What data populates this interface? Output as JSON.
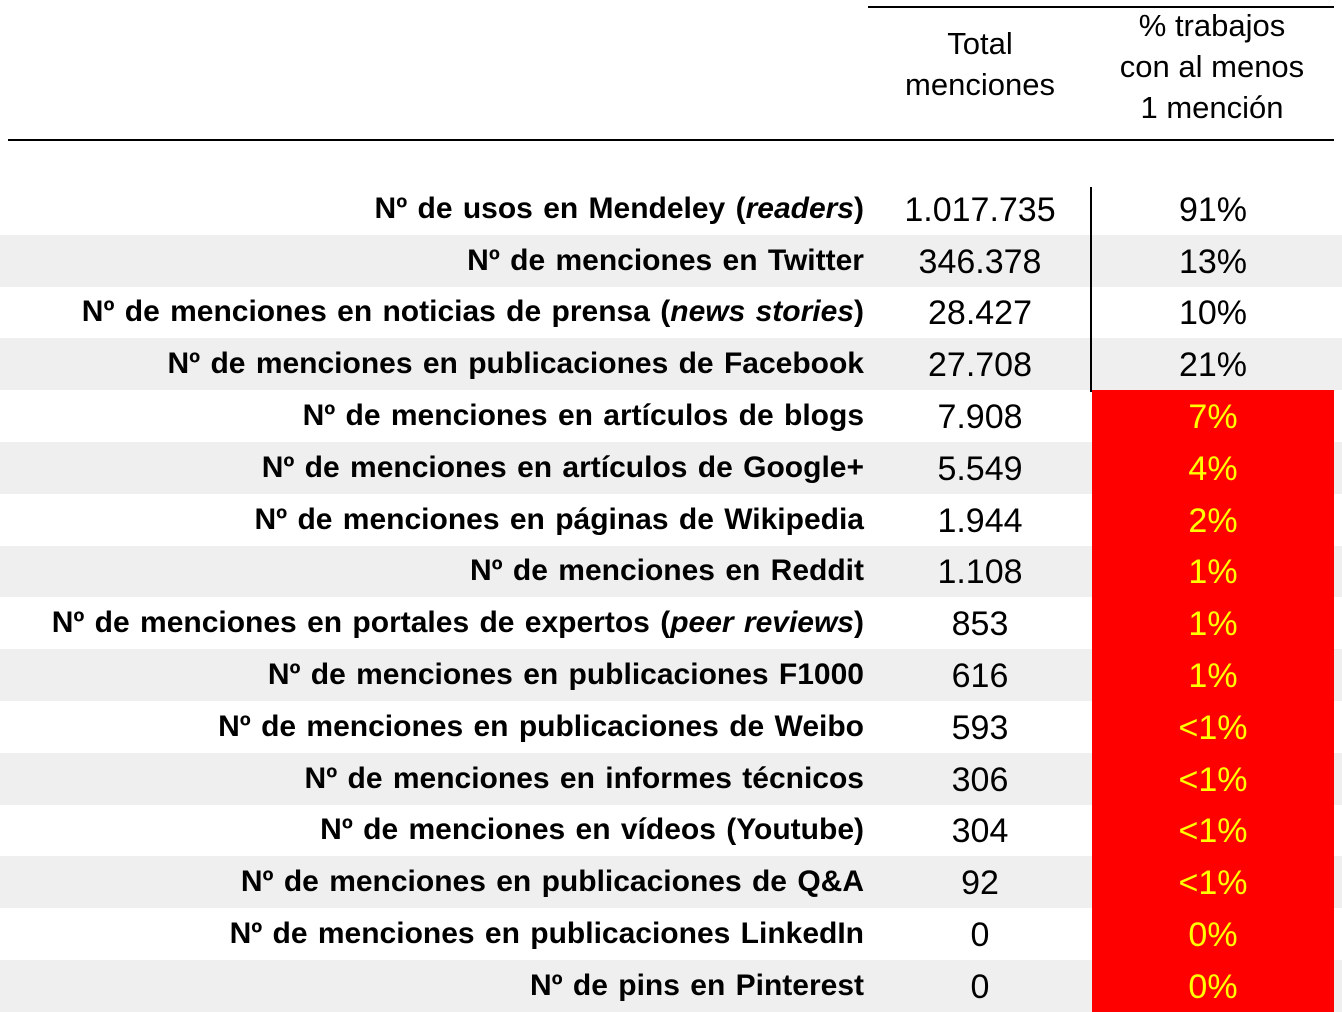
{
  "chart_data": {
    "type": "table",
    "columns": [
      "",
      "Total menciones",
      "% trabajos con al menos 1 mención"
    ],
    "column_headers": {
      "total": [
        "Total",
        "menciones"
      ],
      "pct": [
        "% trabajos",
        "con al menos",
        "1 mención"
      ]
    },
    "highlight_colors": {
      "fill": "#ff0000",
      "text": "#ffff00",
      "shade": "#efefef"
    },
    "rows": [
      {
        "label": "Nº de usos en Mendeley",
        "label_italic": "readers",
        "total": "1.017.735",
        "total_value": 1017735,
        "pct": "91%",
        "pct_value": 91
      },
      {
        "label": "Nº de menciones en Twitter",
        "label_italic": "",
        "total": "346.378",
        "total_value": 346378,
        "pct": "13%",
        "pct_value": 13
      },
      {
        "label": "Nº de menciones en noticias de prensa",
        "label_italic": "news stories",
        "total": "28.427",
        "total_value": 28427,
        "pct": "10%",
        "pct_value": 10
      },
      {
        "label": "Nº de menciones en publicaciones de Facebook",
        "label_italic": "",
        "total": "27.708",
        "total_value": 27708,
        "pct": "21%",
        "pct_value": 21
      },
      {
        "label": "Nº de menciones en artículos de blogs",
        "label_italic": "",
        "total": "7.908",
        "total_value": 7908,
        "pct": "7%",
        "pct_value": 7
      },
      {
        "label": "Nº de menciones en artículos de Google+",
        "label_italic": "",
        "total": "5.549",
        "total_value": 5549,
        "pct": "4%",
        "pct_value": 4
      },
      {
        "label": "Nº de menciones en páginas de Wikipedia",
        "label_italic": "",
        "total": "1.944",
        "total_value": 1944,
        "pct": "2%",
        "pct_value": 2
      },
      {
        "label": "Nº de menciones en Reddit",
        "label_italic": "",
        "total": "1.108",
        "total_value": 1108,
        "pct": "1%",
        "pct_value": 1
      },
      {
        "label": "Nº de menciones en portales de expertos",
        "label_italic": "peer reviews",
        "total": "853",
        "total_value": 853,
        "pct": "1%",
        "pct_value": 1
      },
      {
        "label": "Nº de menciones en publicaciones F1000",
        "label_italic": "",
        "total": "616",
        "total_value": 616,
        "pct": "1%",
        "pct_value": 1
      },
      {
        "label": "Nº de menciones en publicaciones de Weibo",
        "label_italic": "",
        "total": "593",
        "total_value": 593,
        "pct": "<1%",
        "pct_value": null
      },
      {
        "label": "Nº de menciones en informes técnicos",
        "label_italic": "",
        "total": "306",
        "total_value": 306,
        "pct": "<1%",
        "pct_value": null
      },
      {
        "label": "Nº de menciones en vídeos (Youtube)",
        "label_italic": "",
        "total": "304",
        "total_value": 304,
        "pct": "<1%",
        "pct_value": null
      },
      {
        "label": "Nº de menciones en publicaciones de Q&A",
        "label_italic": "",
        "total": "92",
        "total_value": 92,
        "pct": "<1%",
        "pct_value": null
      },
      {
        "label": "Nº de menciones en publicaciones LinkedIn",
        "label_italic": "",
        "total": "0",
        "total_value": 0,
        "pct": "0%",
        "pct_value": 0
      },
      {
        "label": "Nº de pins en Pinterest",
        "label_italic": "",
        "total": "0",
        "total_value": 0,
        "pct": "0%",
        "pct_value": 0
      }
    ],
    "shaded_rows": [
      1,
      3,
      5,
      7,
      9,
      11,
      13,
      15
    ],
    "highlighted_rows": [
      4,
      5,
      6,
      7,
      8,
      9,
      10,
      11,
      12,
      13,
      14,
      15
    ]
  }
}
